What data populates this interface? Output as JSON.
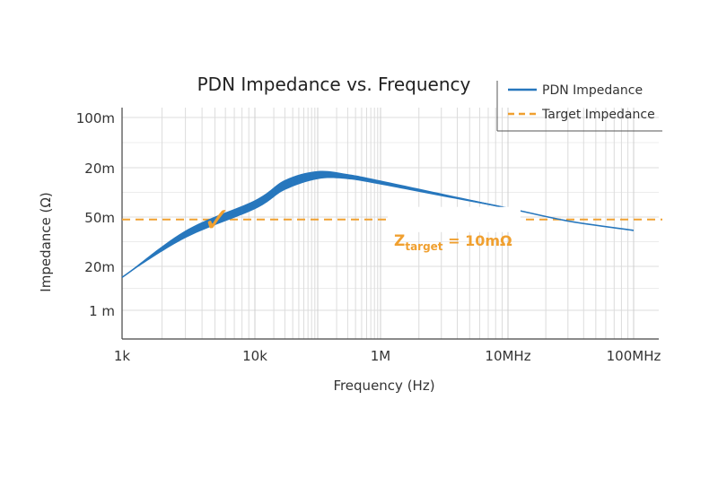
{
  "chart_data": {
    "type": "line",
    "title": "PDN Impedance vs. Frequency",
    "xlabel": "Frequency (Hz)",
    "ylabel": "Impedance (Ω)",
    "x_scale": "log",
    "x_ticks": [
      "1k",
      "10k",
      "1M",
      "10MHz",
      "100MHz"
    ],
    "y_ticks": [
      "100m",
      "20m",
      "50m",
      "20m",
      "1 m"
    ],
    "grid": true,
    "legend": {
      "placement": "top-right",
      "entries": [
        "PDN Impedance",
        "Target Impedance"
      ]
    },
    "series": [
      {
        "name": "PDN Impedance",
        "x": [
          1000,
          3000,
          10000,
          30000,
          100000,
          300000,
          1000000,
          3000000,
          10000000,
          30000000,
          100000000
        ],
        "level_on_y_tick_scale": [
          3.25,
          2.35,
          1.75,
          1.35,
          1.15,
          1.18,
          1.3,
          1.55,
          1.82,
          2.08,
          2.27
        ],
        "band_width": [
          0.0,
          0.15,
          0.18,
          0.2,
          0.16,
          0.1,
          0.08,
          0.05,
          0.02,
          0.01,
          0.0
        ]
      },
      {
        "name": "Target Impedance",
        "style": "dashed",
        "level_on_y_tick_scale": 2.05
      }
    ],
    "annotations": {
      "target_main": "Z",
      "target_sub": "target",
      "target_rest": " = 10mΩ",
      "checkmark": "✓"
    },
    "colors": {
      "pdn": "#2777bd",
      "target": "#f0a030",
      "grid": "#dcdcdc",
      "axis": "#444444"
    }
  }
}
